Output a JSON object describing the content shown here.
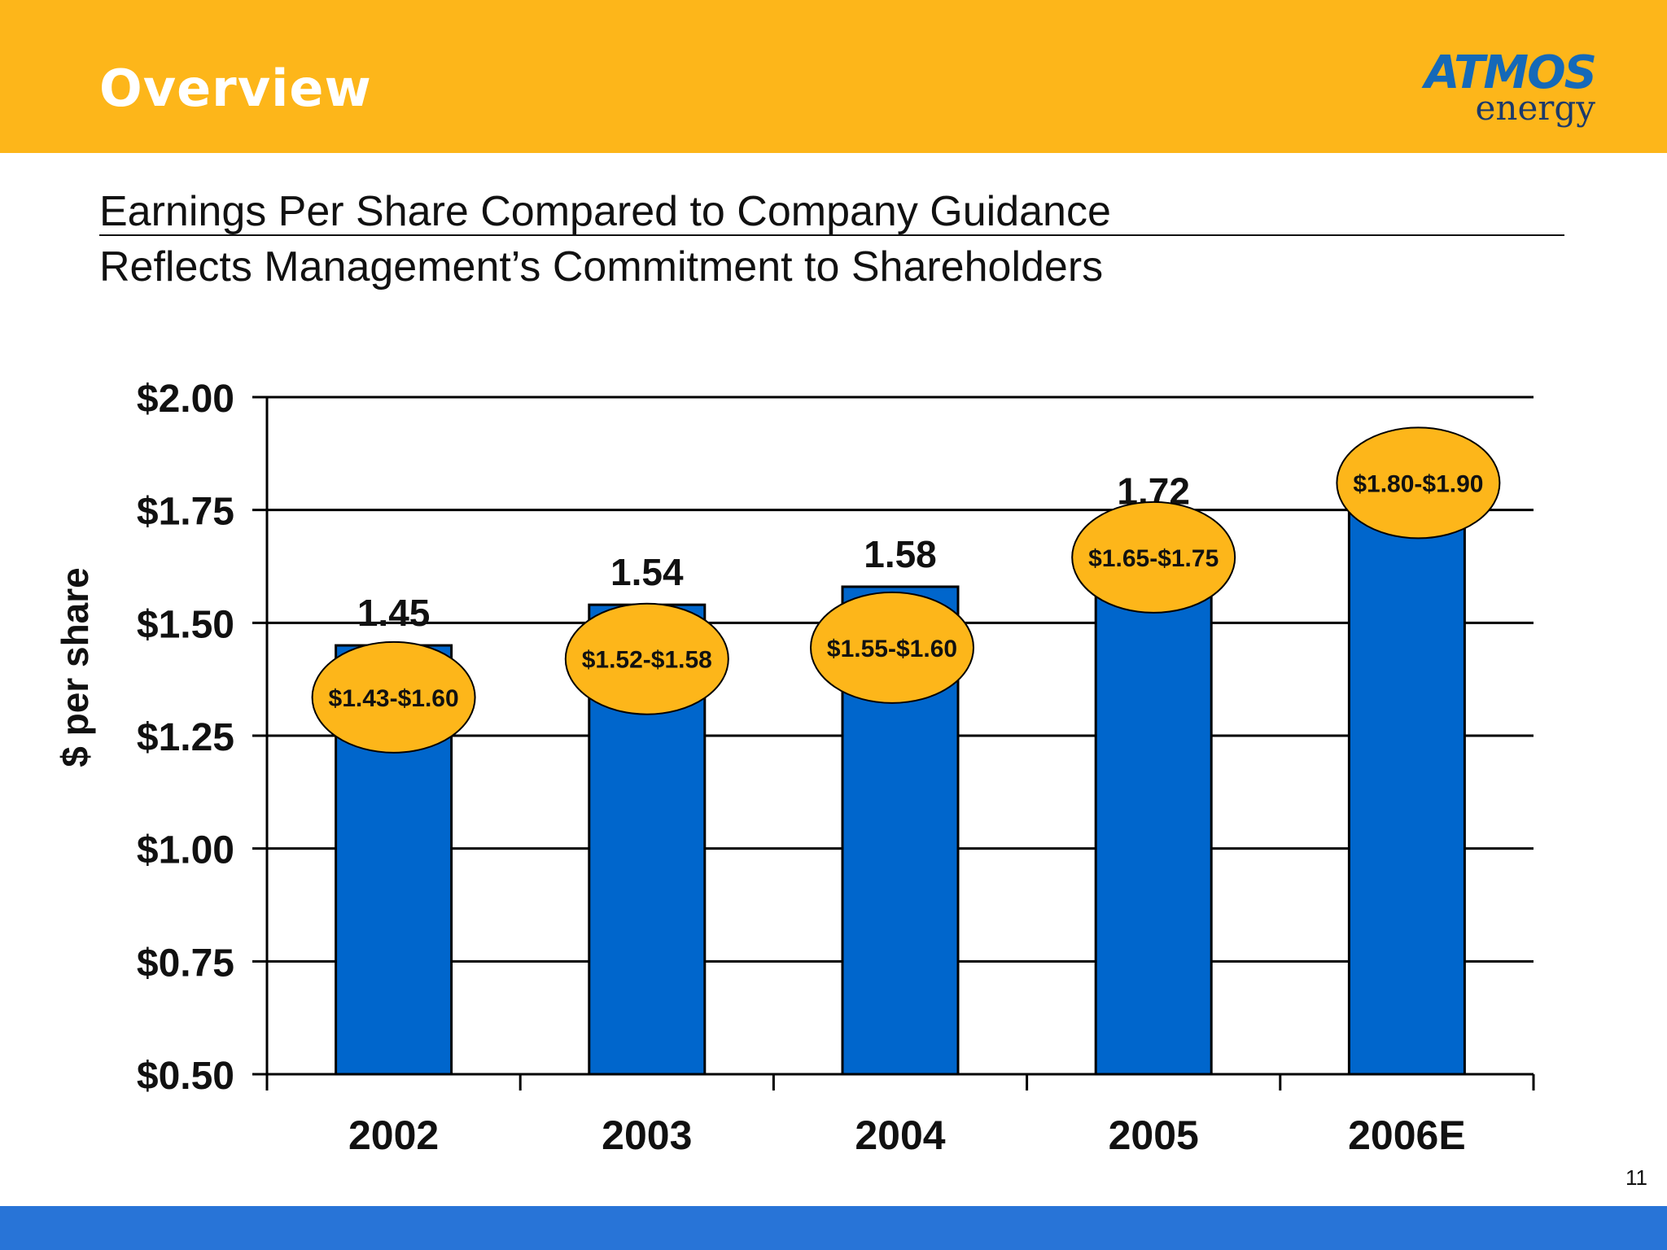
{
  "header": {
    "title": "Overview"
  },
  "logo": {
    "brand": "ATMOS",
    "tagline": "energy"
  },
  "subtitle": {
    "line1": "Earnings Per Share Compared to Company Guidance",
    "line2": "Reflects Management’s Commitment to Shareholders"
  },
  "page_number": "11",
  "colors": {
    "header": "#FDB61A",
    "bar": "#0066CC",
    "bubble": "#FDB61A",
    "footer": "#2874D7"
  },
  "chart_data": {
    "type": "bar",
    "title": "",
    "xlabel": "",
    "ylabel": "$ per share",
    "ylim": [
      0.5,
      2.0
    ],
    "yticks": [
      2.0,
      1.75,
      1.5,
      1.25,
      1.0,
      0.75,
      0.5
    ],
    "ytick_labels": [
      "$2.00",
      "$1.75",
      "$1.50",
      "$1.25",
      "$1.00",
      "$0.75",
      "$0.50"
    ],
    "grid": true,
    "categories": [
      "2002",
      "2003",
      "2004",
      "2005",
      "2006E"
    ],
    "values": [
      1.45,
      1.54,
      1.58,
      1.72,
      1.85
    ],
    "value_labels": [
      "1.45",
      "1.54",
      "1.58",
      "1.72",
      ""
    ],
    "guidance": [
      "$1.43-$1.60",
      "$1.52-$1.58",
      "$1.55-$1.60",
      "$1.65-$1.75",
      "$1.80-$1.90"
    ],
    "guidance_center": [
      1.335,
      1.42,
      1.445,
      1.645,
      1.81
    ]
  }
}
